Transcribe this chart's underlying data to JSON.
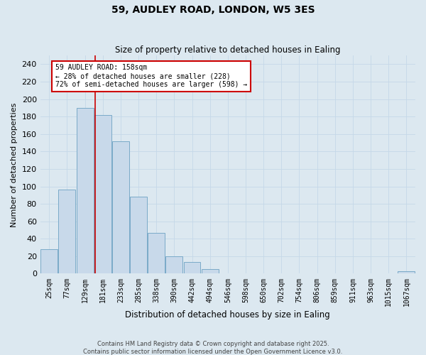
{
  "title1": "59, AUDLEY ROAD, LONDON, W5 3ES",
  "title2": "Size of property relative to detached houses in Ealing",
  "xlabel": "Distribution of detached houses by size in Ealing",
  "ylabel": "Number of detached properties",
  "categories": [
    "25sqm",
    "77sqm",
    "129sqm",
    "181sqm",
    "233sqm",
    "285sqm",
    "338sqm",
    "390sqm",
    "442sqm",
    "494sqm",
    "546sqm",
    "598sqm",
    "650sqm",
    "702sqm",
    "754sqm",
    "806sqm",
    "859sqm",
    "911sqm",
    "963sqm",
    "1015sqm",
    "1067sqm"
  ],
  "values": [
    28,
    96,
    190,
    182,
    152,
    88,
    47,
    20,
    13,
    5,
    0,
    0,
    0,
    0,
    0,
    0,
    0,
    0,
    0,
    0,
    3
  ],
  "bar_color": "#c8d9ea",
  "bar_edge_color": "#7aaac8",
  "property_line_color": "#cc0000",
  "annotation_text": "59 AUDLEY ROAD: 158sqm\n← 28% of detached houses are smaller (228)\n72% of semi-detached houses are larger (598) →",
  "annotation_box_color": "#ffffff",
  "annotation_box_edge": "#cc0000",
  "ylim": [
    0,
    250
  ],
  "yticks": [
    0,
    20,
    40,
    60,
    80,
    100,
    120,
    140,
    160,
    180,
    200,
    220,
    240
  ],
  "grid_color": "#c5d8e8",
  "background_color": "#dce8f0",
  "footer1": "Contains HM Land Registry data © Crown copyright and database right 2025.",
  "footer2": "Contains public sector information licensed under the Open Government Licence v3.0."
}
